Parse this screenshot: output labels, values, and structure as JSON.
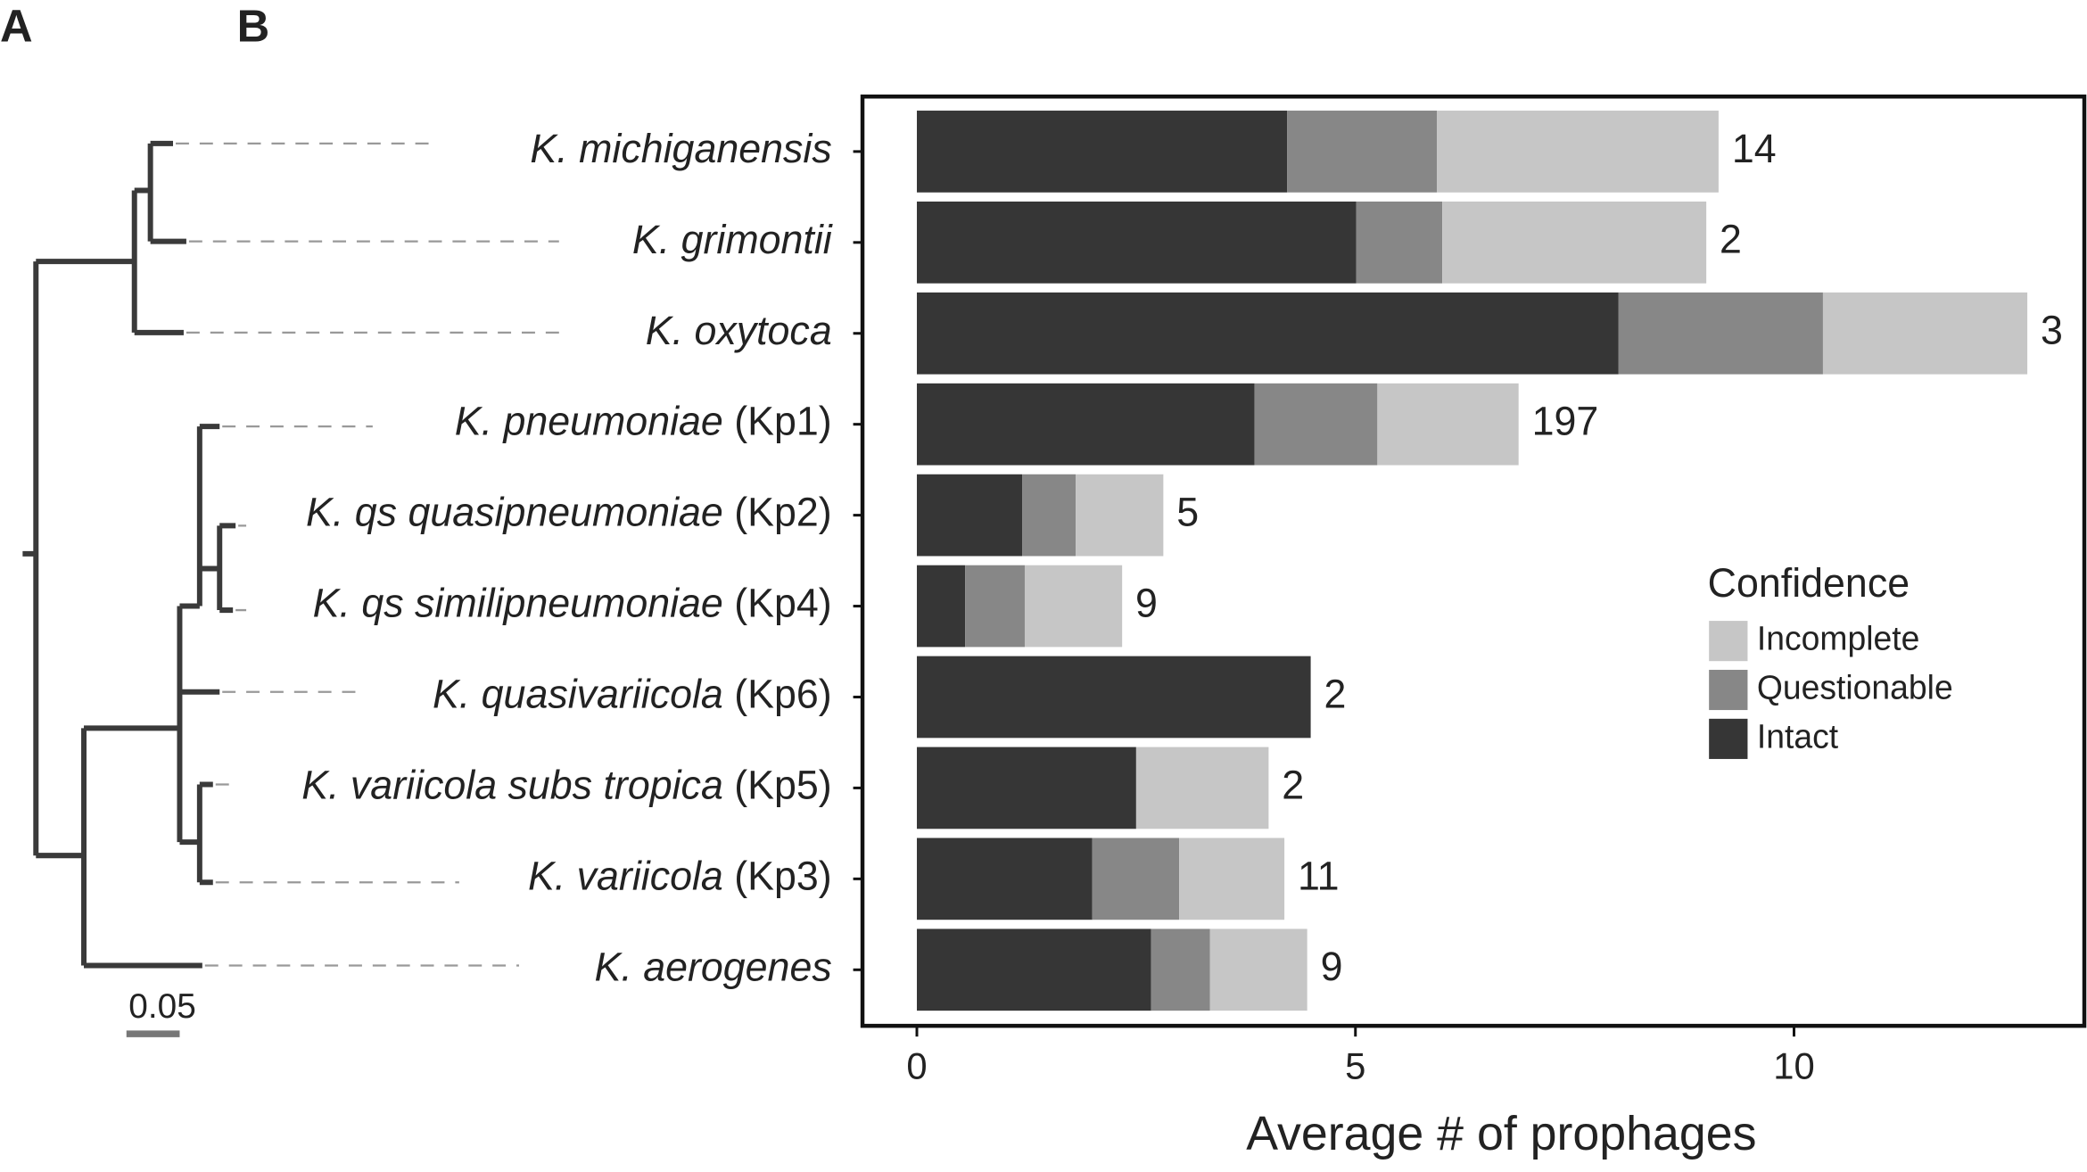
{
  "panel_labels": [
    "A",
    "B"
  ],
  "tree": {
    "scale_label": "0.05"
  },
  "chart_data": {
    "type": "barh_stacked",
    "categories": [
      "K. michiganensis",
      "K. grimontii",
      "K. oxytoca",
      "K. pneumoniae (Kp1)",
      "K. qs quasipneumoniae (Kp2)",
      "K. qs similipneumoniae (Kp4)",
      "K. quasivariicola (Kp6)",
      "K. variicola subs tropica (Kp5)",
      "K. variicola (Kp3)",
      "K. aerogenes"
    ],
    "series": [
      {
        "name": "Intact",
        "color": "#363636",
        "values": [
          4.22,
          5.01,
          8.0,
          3.85,
          1.2,
          0.55,
          4.49,
          2.5,
          2.0,
          2.67
        ]
      },
      {
        "name": "Questionable",
        "color": "#878787",
        "values": [
          1.71,
          0.98,
          2.33,
          1.4,
          0.61,
          0.68,
          0,
          0,
          0.99,
          0.67
        ]
      },
      {
        "name": "Incomplete",
        "color": "#c6c6c6",
        "values": [
          3.21,
          3.01,
          2.33,
          1.61,
          1.0,
          1.11,
          0,
          1.51,
          1.2,
          1.11
        ]
      }
    ],
    "genome_counts": [
      14,
      2,
      3,
      197,
      5,
      9,
      2,
      2,
      11,
      9
    ],
    "xlim": [
      -0.62,
      13.31
    ],
    "xticks": [
      0,
      5,
      10
    ],
    "xlabel": "Average # of prophages",
    "legend_title": "Confidence",
    "legend": "right"
  }
}
